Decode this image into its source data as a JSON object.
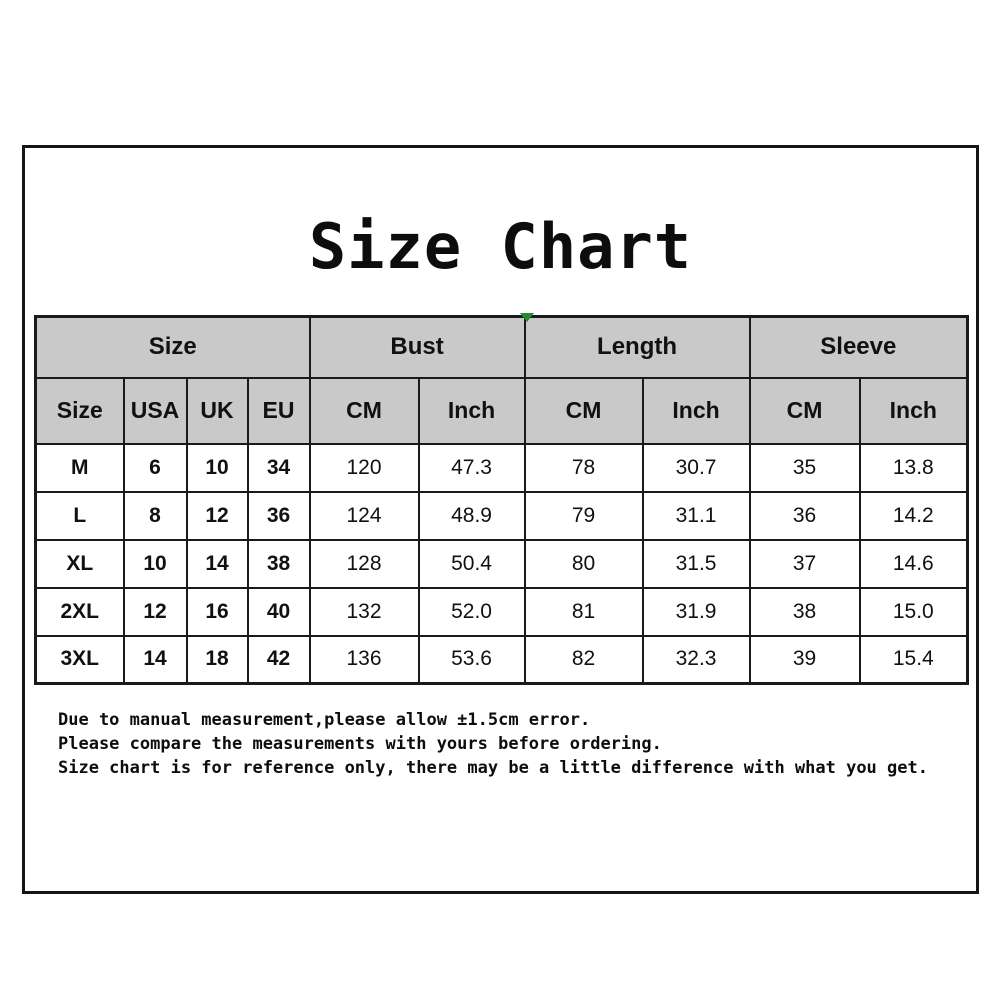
{
  "title": "Size Chart",
  "table": {
    "groups": [
      {
        "label": "Size"
      },
      {
        "label": "Bust"
      },
      {
        "label": "Length"
      },
      {
        "label": "Sleeve"
      }
    ],
    "subheaders": [
      "Size",
      "USA",
      "UK",
      "EU",
      "CM",
      "Inch",
      "CM",
      "Inch",
      "CM",
      "Inch"
    ],
    "rows": [
      [
        "M",
        "6",
        "10",
        "34",
        "120",
        "47.3",
        "78",
        "30.7",
        "35",
        "13.8"
      ],
      [
        "L",
        "8",
        "12",
        "36",
        "124",
        "48.9",
        "79",
        "31.1",
        "36",
        "14.2"
      ],
      [
        "XL",
        "10",
        "14",
        "38",
        "128",
        "50.4",
        "80",
        "31.5",
        "37",
        "14.6"
      ],
      [
        "2XL",
        "12",
        "16",
        "40",
        "132",
        "52.0",
        "81",
        "31.9",
        "38",
        "15.0"
      ],
      [
        "3XL",
        "14",
        "18",
        "42",
        "136",
        "53.6",
        "82",
        "32.3",
        "39",
        "15.4"
      ]
    ]
  },
  "notes": [
    "Due to manual measurement,please allow ±1.5cm error.",
    "Please compare the measurements with yours before ordering.",
    "Size chart is for reference only, there may be a little difference with what you get."
  ],
  "colors": {
    "header_bg": "#c9c9c9",
    "border": "#1a1a1a",
    "marker_green": "#1e8c2f"
  }
}
